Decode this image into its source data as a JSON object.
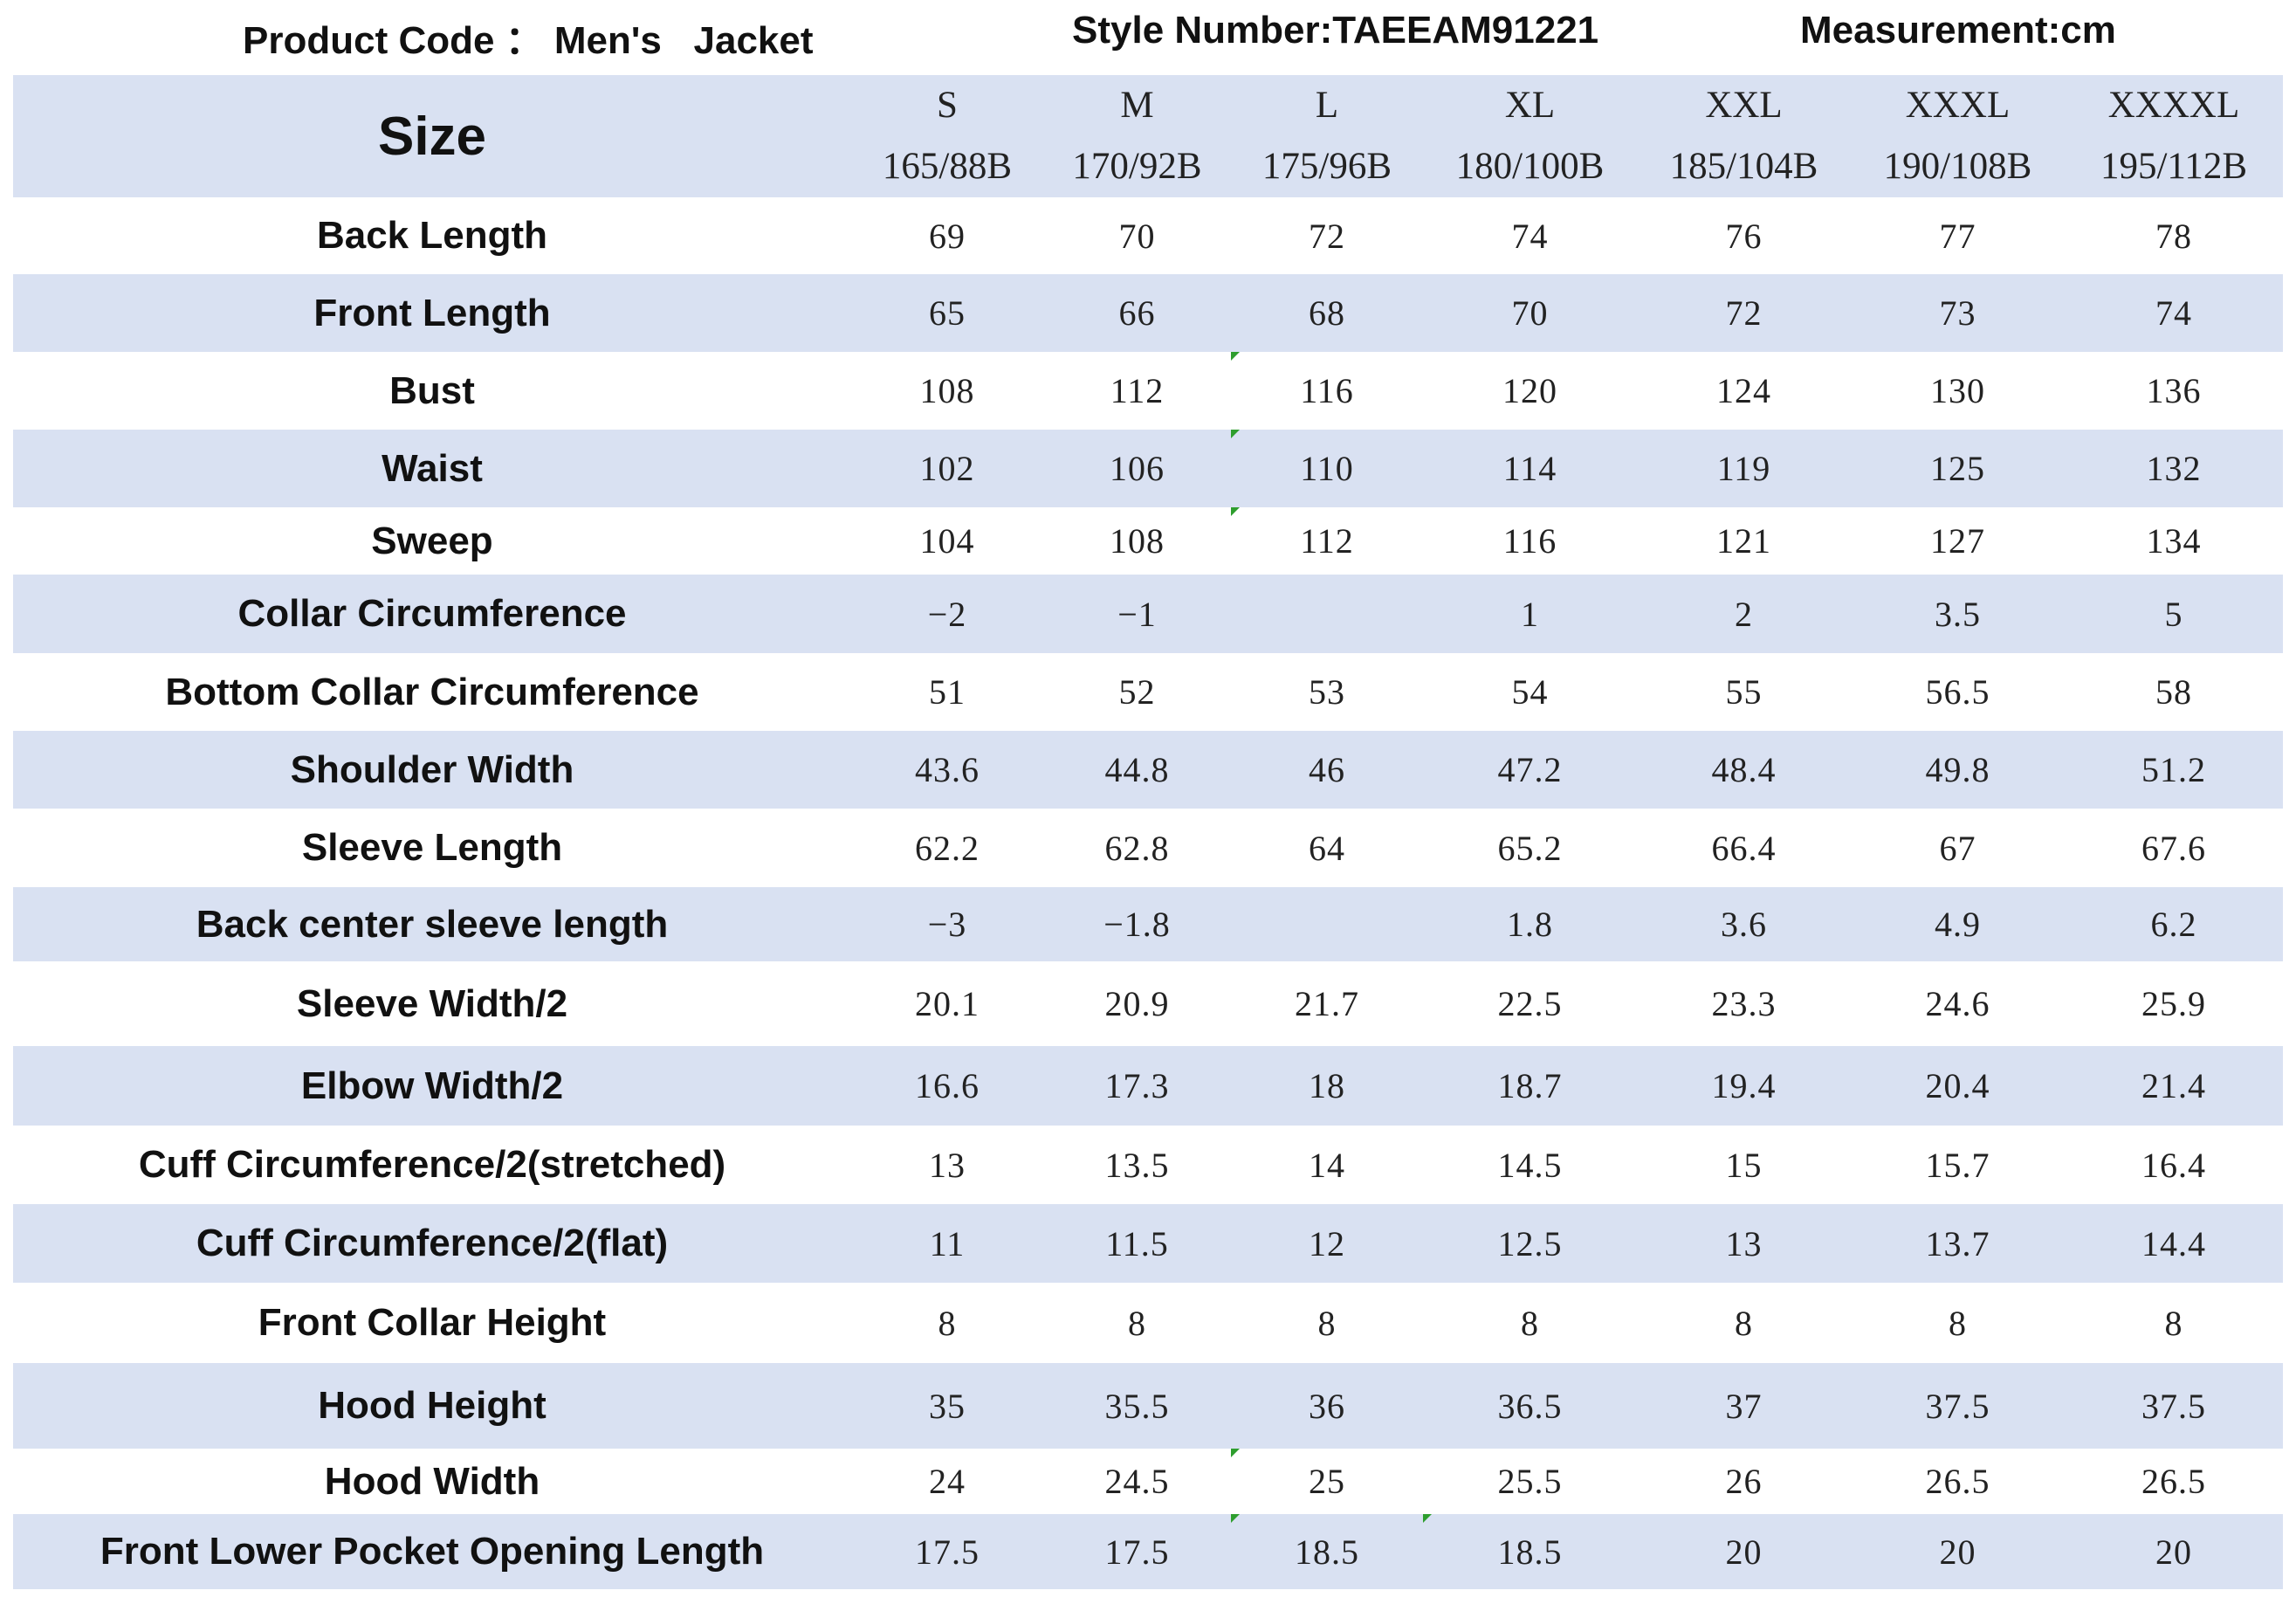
{
  "header": {
    "product_code": "Product Code ： Men's   Jacket",
    "style_number": "Style Number:TAEEAM91221",
    "measurement": "Measurement:cm"
  },
  "table": {
    "size_label": "Size",
    "sizes": [
      {
        "name": "S",
        "spec": "165/88B"
      },
      {
        "name": "M",
        "spec": "170/92B"
      },
      {
        "name": "L",
        "spec": "175/96B"
      },
      {
        "name": "XL",
        "spec": "180/100B"
      },
      {
        "name": "XXL",
        "spec": "185/104B"
      },
      {
        "name": "XXXL",
        "spec": "190/108B"
      },
      {
        "name": "XXXXL",
        "spec": "195/112B"
      }
    ],
    "rows": [
      {
        "label": "Back Length",
        "values": [
          "69",
          "70",
          "72",
          "74",
          "76",
          "77",
          "78"
        ]
      },
      {
        "label": "Front Length",
        "values": [
          "65",
          "66",
          "68",
          "70",
          "72",
          "73",
          "74"
        ]
      },
      {
        "label": "Bust",
        "values": [
          "108",
          "112",
          "116",
          "120",
          "124",
          "130",
          "136"
        ]
      },
      {
        "label": "Waist",
        "values": [
          "102",
          "106",
          "110",
          "114",
          "119",
          "125",
          "132"
        ]
      },
      {
        "label": "Sweep",
        "values": [
          "104",
          "108",
          "112",
          "116",
          "121",
          "127",
          "134"
        ]
      },
      {
        "label": "Collar Circumference",
        "values": [
          "−2",
          "−1",
          "",
          "1",
          "2",
          "3.5",
          "5"
        ]
      },
      {
        "label": "Bottom Collar Circumference",
        "values": [
          "51",
          "52",
          "53",
          "54",
          "55",
          "56.5",
          "58"
        ]
      },
      {
        "label": "Shoulder Width",
        "values": [
          "43.6",
          "44.8",
          "46",
          "47.2",
          "48.4",
          "49.8",
          "51.2"
        ]
      },
      {
        "label": "Sleeve Length",
        "values": [
          "62.2",
          "62.8",
          "64",
          "65.2",
          "66.4",
          "67",
          "67.6"
        ]
      },
      {
        "label": "Back center sleeve length",
        "values": [
          "−3",
          "−1.8",
          "",
          "1.8",
          "3.6",
          "4.9",
          "6.2"
        ]
      },
      {
        "label": "Sleeve Width/2",
        "values": [
          "20.1",
          "20.9",
          "21.7",
          "22.5",
          "23.3",
          "24.6",
          "25.9"
        ]
      },
      {
        "label": "Elbow Width/2",
        "values": [
          "16.6",
          "17.3",
          "18",
          "18.7",
          "19.4",
          "20.4",
          "21.4"
        ]
      },
      {
        "label": "Cuff Circumference/2(stretched)",
        "values": [
          "13",
          "13.5",
          "14",
          "14.5",
          "15",
          "15.7",
          "16.4"
        ]
      },
      {
        "label": "Cuff Circumference/2(flat)",
        "values": [
          "11",
          "11.5",
          "12",
          "12.5",
          "13",
          "13.7",
          "14.4"
        ]
      },
      {
        "label": "Front Collar Height",
        "values": [
          "8",
          "8",
          "8",
          "8",
          "8",
          "8",
          "8"
        ]
      },
      {
        "label": "Hood Height",
        "values": [
          "35",
          "35.5",
          "36",
          "36.5",
          "37",
          "37.5",
          "37.5"
        ]
      },
      {
        "label": "Hood Width",
        "values": [
          "24",
          "24.5",
          "25",
          "25.5",
          "26",
          "26.5",
          "26.5"
        ]
      },
      {
        "label": "Front Lower Pocket Opening Length",
        "values": [
          "17.5",
          "17.5",
          "18.5",
          "18.5",
          "20",
          "20",
          "20"
        ]
      }
    ]
  }
}
